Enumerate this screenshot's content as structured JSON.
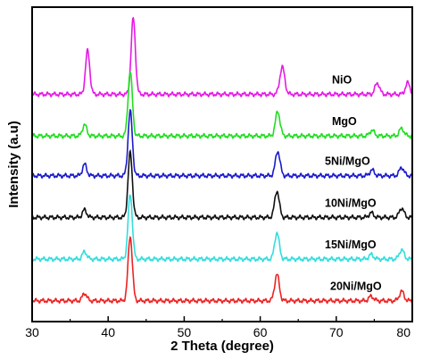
{
  "chart_data": {
    "type": "line",
    "title": "",
    "xlabel": "2 Theta (degree)",
    "ylabel": "Intensity (a.u)",
    "xlim": [
      30,
      80
    ],
    "x_ticks": [
      "30",
      "40",
      "50",
      "60",
      "70",
      "80"
    ],
    "grid": false,
    "legend": "inline labels",
    "series": [
      {
        "name": "NiO",
        "color": "#e619e6",
        "baseline": 6.0,
        "peaks": [
          [
            37.3,
            1.15,
            0.28
          ],
          [
            43.3,
            2.0,
            0.28
          ],
          [
            62.9,
            0.72,
            0.32
          ],
          [
            75.4,
            0.3,
            0.3
          ],
          [
            79.4,
            0.3,
            0.3
          ]
        ]
      },
      {
        "name": "MgO",
        "color": "#22dd22",
        "baseline": 4.9,
        "peaks": [
          [
            36.9,
            0.3,
            0.28
          ],
          [
            42.9,
            1.7,
            0.28
          ],
          [
            62.3,
            0.65,
            0.3
          ],
          [
            74.7,
            0.15,
            0.3
          ],
          [
            78.6,
            0.2,
            0.3
          ]
        ]
      },
      {
        "name": "5Ni/MgO",
        "color": "#1a1acc",
        "baseline": 3.85,
        "peaks": [
          [
            36.9,
            0.3,
            0.28
          ],
          [
            42.9,
            1.7,
            0.28
          ],
          [
            62.3,
            0.65,
            0.3
          ],
          [
            74.7,
            0.15,
            0.3
          ],
          [
            78.6,
            0.22,
            0.3
          ]
        ]
      },
      {
        "name": "10Ni/MgO",
        "color": "#111111",
        "baseline": 2.75,
        "peaks": [
          [
            36.9,
            0.2,
            0.28
          ],
          [
            42.9,
            1.7,
            0.28
          ],
          [
            62.2,
            0.7,
            0.3
          ],
          [
            74.6,
            0.12,
            0.3
          ],
          [
            78.6,
            0.25,
            0.3
          ]
        ]
      },
      {
        "name": "15Ni/MgO",
        "color": "#33dddd",
        "baseline": 1.65,
        "peaks": [
          [
            36.9,
            0.2,
            0.28
          ],
          [
            42.9,
            1.7,
            0.28
          ],
          [
            62.2,
            0.7,
            0.3
          ],
          [
            74.6,
            0.12,
            0.3
          ],
          [
            78.6,
            0.25,
            0.3
          ]
        ]
      },
      {
        "name": "20Ni/MgO",
        "color": "#ee2222",
        "baseline": 0.55,
        "peaks": [
          [
            36.9,
            0.2,
            0.28
          ],
          [
            42.9,
            1.7,
            0.28
          ],
          [
            62.2,
            0.7,
            0.3
          ],
          [
            74.6,
            0.12,
            0.3
          ],
          [
            78.6,
            0.25,
            0.3
          ]
        ]
      }
    ]
  }
}
